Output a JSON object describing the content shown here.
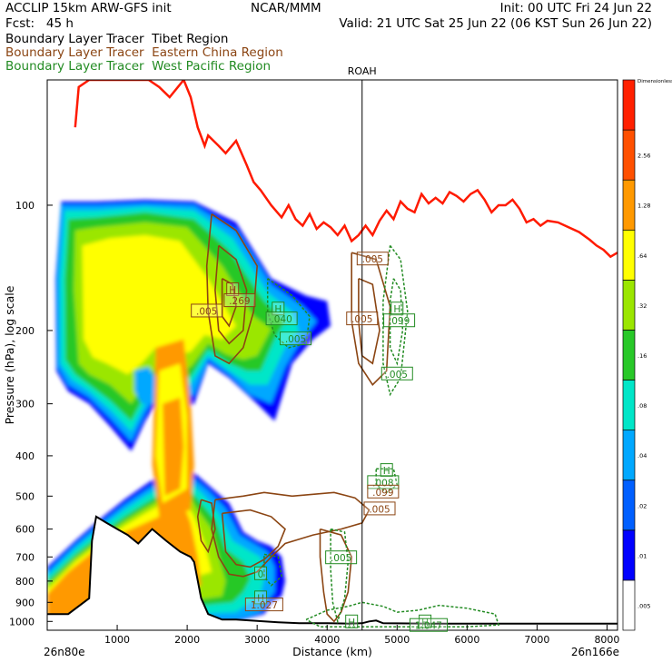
{
  "header": {
    "left1": "ACCLIP 15km ARW-GFS init",
    "left2": "Fcst:   45 h",
    "center": "NCAR/MMM",
    "right1": "Init: 00 UTC Fri 24 Jun 22",
    "right2": "Valid: 21 UTC Sat 25 Jun 22 (06 KST Sun 26 Jun 22)"
  },
  "tracers": [
    {
      "label": "Boundary Layer Tracer  Tibet Region",
      "color": "#000000"
    },
    {
      "label": "Boundary Layer Tracer  Eastern China Region",
      "color": "#8b4513"
    },
    {
      "label": "Boundary Layer Tracer  West Pacific Region",
      "color": "#228b22"
    }
  ],
  "chart_data": {
    "type": "cross-section",
    "xlabel": "Distance (km)",
    "ylabel": "Pressure (hPa), log scale",
    "x_ticks": [
      "1000",
      "2000",
      "3000",
      "4000",
      "5000",
      "6000",
      "7000",
      "8000"
    ],
    "y_ticks": [
      "100",
      "200",
      "300",
      "400",
      "500",
      "600",
      "700",
      "800",
      "900",
      "1000"
    ],
    "x_start_label": "26n80e",
    "x_end_label": "26n166e",
    "marker_label": "ROAH",
    "marker_x_km": 4500,
    "xlim": [
      0,
      8150
    ],
    "ylim_hpa": [
      1050,
      50
    ],
    "colorbar": {
      "title": "Dimensionless",
      "levels": [
        ".005",
        ".01",
        ".02",
        ".04",
        ".08",
        ".16",
        ".32",
        ".64",
        "1.28",
        "2.56"
      ],
      "colors": [
        "#ffffff",
        "#0000ff",
        "#005fff",
        "#00a8ff",
        "#00e6c8",
        "#28c828",
        "#9be600",
        "#ffff00",
        "#ff9900",
        "#ff5000",
        "#ff2000"
      ]
    },
    "contour_labels": [
      {
        "text": "H",
        "color": "#8b4513",
        "x_km": 2650,
        "p": 160
      },
      {
        "text": ".269",
        "color": "#8b4513",
        "x_km": 2750,
        "p": 170
      },
      {
        "text": ".005",
        "color": "#8b4513",
        "x_km": 2280,
        "p": 180
      },
      {
        "text": "H",
        "color": "#228b22",
        "x_km": 3300,
        "p": 178
      },
      {
        "text": ".040",
        "color": "#228b22",
        "x_km": 3350,
        "p": 188
      },
      {
        "text": ".005",
        "color": "#228b22",
        "x_km": 3550,
        "p": 210
      },
      {
        "text": ".005",
        "color": "#8b4513",
        "x_km": 4650,
        "p": 135
      },
      {
        "text": ".005",
        "color": "#8b4513",
        "x_km": 4500,
        "p": 188
      },
      {
        "text": "H",
        "color": "#228b22",
        "x_km": 5000,
        "p": 178
      },
      {
        "text": ".099",
        "color": "#228b22",
        "x_km": 5030,
        "p": 190
      },
      {
        "text": ".005",
        "color": "#228b22",
        "x_km": 5000,
        "p": 255
      },
      {
        "text": "H",
        "color": "#228b22",
        "x_km": 4850,
        "p": 435
      },
      {
        "text": ".008",
        "color": "#228b22",
        "x_km": 4800,
        "p": 465
      },
      {
        "text": ".099",
        "color": "#8b4513",
        "x_km": 4800,
        "p": 490
      },
      {
        "text": ".005",
        "color": "#8b4513",
        "x_km": 4750,
        "p": 538
      },
      {
        "text": ".005",
        "color": "#228b22",
        "x_km": 4200,
        "p": 705
      },
      {
        "text": "0",
        "color": "#228b22",
        "x_km": 3050,
        "p": 770
      },
      {
        "text": "H",
        "color": "#228b22",
        "x_km": 3050,
        "p": 880
      },
      {
        "text": "1.027",
        "color": "#8b4513",
        "x_km": 3100,
        "p": 915
      },
      {
        "text": "H",
        "color": "#228b22",
        "x_km": 4350,
        "p": 1005
      },
      {
        "text": "H",
        "color": "#228b22",
        "x_km": 5400,
        "p": 1005
      },
      {
        "text": "1.047",
        "color": "#228b22",
        "x_km": 5450,
        "p": 1025
      }
    ]
  }
}
